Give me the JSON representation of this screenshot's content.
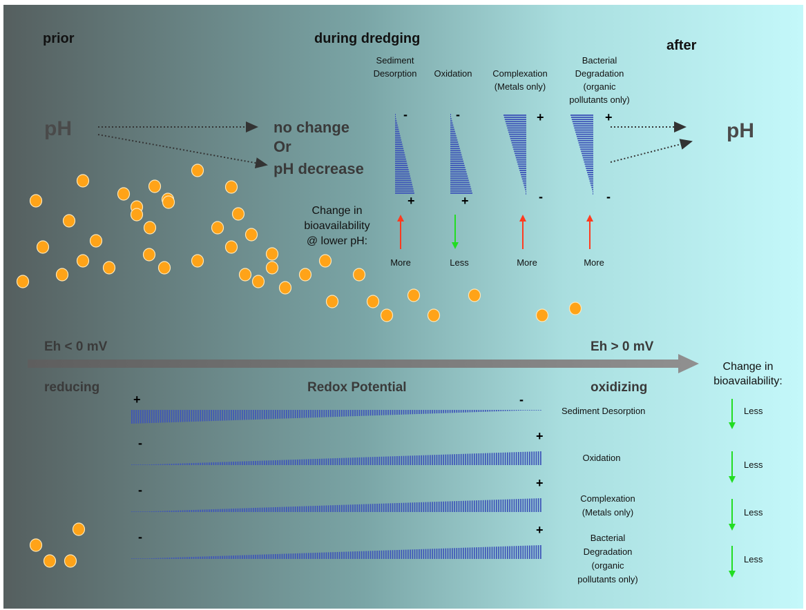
{
  "phases": {
    "prior": "prior",
    "during": "during dredging",
    "after": "after"
  },
  "ph": {
    "left_label": "pH",
    "right_label": "pH",
    "outcome_line1": "no change",
    "outcome_line2": "Or",
    "outcome_line3": "pH decrease"
  },
  "ph_processes": {
    "change_label_line1": "Change in",
    "change_label_line2": "bioavailability",
    "change_label_line3": "@ lower pH:",
    "items": [
      {
        "name_lines": [
          "Sediment",
          "Desorption"
        ],
        "top_sign": "-",
        "bottom_sign": "+",
        "effect": "More",
        "direction": "up",
        "arrow_color": "#ff3b1f"
      },
      {
        "name_lines": [
          "Oxidation"
        ],
        "top_sign": "-",
        "bottom_sign": "+",
        "effect": "Less",
        "direction": "down",
        "arrow_color": "#22dd22"
      },
      {
        "name_lines": [
          "Complexation",
          "(Metals only)"
        ],
        "top_sign": "+",
        "bottom_sign": "-",
        "effect": "More",
        "direction": "up",
        "arrow_color": "#ff3b1f"
      },
      {
        "name_lines": [
          "Bacterial",
          "Degradation",
          "(organic",
          "pollutants only)"
        ],
        "top_sign": "+",
        "bottom_sign": "-",
        "effect": "More",
        "direction": "up",
        "arrow_color": "#ff3b1f"
      }
    ]
  },
  "redox": {
    "left_eh": "Eh < 0 mV",
    "right_eh": "Eh > 0 mV",
    "left_state": "reducing",
    "right_state": "oxidizing",
    "title": "Redox Potential",
    "change_label_line1": "Change in",
    "change_label_line2": "bioavailability:",
    "items": [
      {
        "name_lines": [
          "Sediment Desorption"
        ],
        "left_sign": "+",
        "right_sign": "-",
        "effect": "Less",
        "direction": "down",
        "arrow_color": "#22dd22"
      },
      {
        "name_lines": [
          "Oxidation"
        ],
        "left_sign": "-",
        "right_sign": "+",
        "effect": "Less",
        "direction": "down",
        "arrow_color": "#22dd22"
      },
      {
        "name_lines": [
          "Complexation",
          "(Metals only)"
        ],
        "left_sign": "-",
        "right_sign": "+",
        "effect": "Less",
        "direction": "down",
        "arrow_color": "#22dd22"
      },
      {
        "name_lines": [
          "Bacterial",
          "Degradation",
          "(organic",
          "pollutants only)"
        ],
        "left_sign": "-",
        "right_sign": "+",
        "effect": "Less",
        "direction": "down",
        "arrow_color": "#22dd22"
      }
    ]
  },
  "colors": {
    "background_left": "#555f5f",
    "background_right": "#c4f8fa",
    "wedge": "#3f56b8",
    "particle": "#ffa318",
    "arrow_bar": "#858585"
  }
}
